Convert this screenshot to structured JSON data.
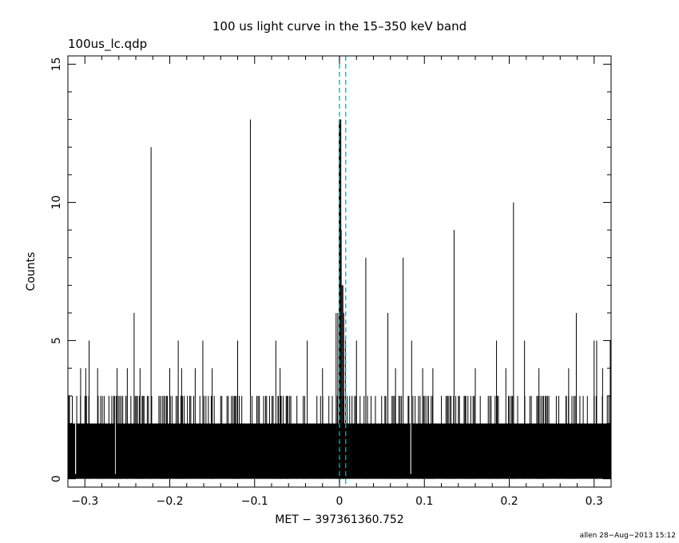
{
  "chart_data": {
    "type": "bar",
    "title": "100 us light curve in the 15–350 keV band",
    "subtitle": "100us_lc.qdp",
    "xlabel": "MET − 397361360.752",
    "ylabel": "Counts",
    "xlim": [
      -0.32,
      0.32
    ],
    "ylim": [
      -0.3,
      15.3
    ],
    "x_ticks": [
      -0.3,
      -0.2,
      -0.1,
      0,
      0.1,
      0.2,
      0.3
    ],
    "x_tick_labels": [
      "−0.3",
      "−0.2",
      "−0.1",
      "0",
      "0.1",
      "0.2",
      "0.3"
    ],
    "y_ticks": [
      0,
      5,
      10,
      15
    ],
    "y_tick_labels": [
      "0",
      "5",
      "10",
      "15"
    ],
    "bin_width": 0.0001,
    "baseline_level": 2,
    "noise_band_max": 3,
    "vertical_lines": [
      {
        "x": 0.0,
        "color": "#00b0b0",
        "style": "dashed"
      },
      {
        "x": 0.0073,
        "color": "#00b0b0",
        "style": "dashed"
      }
    ],
    "peaks": [
      {
        "x": -0.305,
        "y": 4
      },
      {
        "x": -0.299,
        "y": 4
      },
      {
        "x": -0.295,
        "y": 5
      },
      {
        "x": -0.285,
        "y": 4
      },
      {
        "x": -0.262,
        "y": 4
      },
      {
        "x": -0.25,
        "y": 4
      },
      {
        "x": -0.242,
        "y": 6
      },
      {
        "x": -0.235,
        "y": 4
      },
      {
        "x": -0.222,
        "y": 12
      },
      {
        "x": -0.2,
        "y": 4
      },
      {
        "x": -0.19,
        "y": 5
      },
      {
        "x": -0.186,
        "y": 4
      },
      {
        "x": -0.17,
        "y": 4
      },
      {
        "x": -0.161,
        "y": 5
      },
      {
        "x": -0.15,
        "y": 4
      },
      {
        "x": -0.12,
        "y": 5
      },
      {
        "x": -0.105,
        "y": 13
      },
      {
        "x": -0.075,
        "y": 5
      },
      {
        "x": -0.07,
        "y": 4
      },
      {
        "x": -0.038,
        "y": 5
      },
      {
        "x": -0.02,
        "y": 4
      },
      {
        "x": -0.004,
        "y": 6
      },
      {
        "x": -0.002,
        "y": 6
      },
      {
        "x": 0.0,
        "y": 13
      },
      {
        "x": 0.001,
        "y": 12
      },
      {
        "x": 0.002,
        "y": 9
      },
      {
        "x": 0.003,
        "y": 7
      },
      {
        "x": 0.004,
        "y": 7
      },
      {
        "x": 0.005,
        "y": 6
      },
      {
        "x": 0.007,
        "y": 5
      },
      {
        "x": 0.02,
        "y": 5
      },
      {
        "x": 0.031,
        "y": 8
      },
      {
        "x": 0.057,
        "y": 6
      },
      {
        "x": 0.066,
        "y": 4
      },
      {
        "x": 0.075,
        "y": 8
      },
      {
        "x": 0.085,
        "y": 5
      },
      {
        "x": 0.098,
        "y": 4
      },
      {
        "x": 0.11,
        "y": 4
      },
      {
        "x": 0.135,
        "y": 9
      },
      {
        "x": 0.16,
        "y": 4
      },
      {
        "x": 0.185,
        "y": 5
      },
      {
        "x": 0.196,
        "y": 4
      },
      {
        "x": 0.205,
        "y": 10
      },
      {
        "x": 0.218,
        "y": 5
      },
      {
        "x": 0.235,
        "y": 4
      },
      {
        "x": 0.27,
        "y": 4
      },
      {
        "x": 0.279,
        "y": 6
      },
      {
        "x": 0.3,
        "y": 5
      },
      {
        "x": 0.303,
        "y": 5
      },
      {
        "x": 0.31,
        "y": 4
      },
      {
        "x": 0.319,
        "y": 5
      }
    ]
  },
  "footer": "allen 28−Aug−2013 15:12"
}
